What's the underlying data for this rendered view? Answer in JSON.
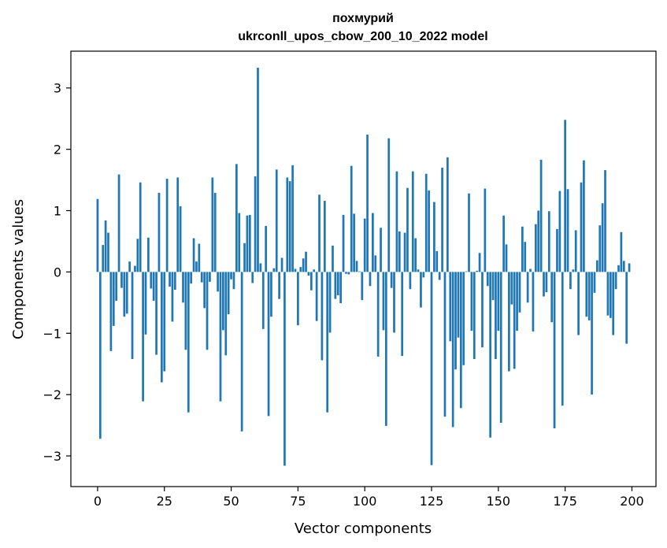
{
  "chart_data": {
    "type": "bar",
    "title_line1": "похмурий",
    "title_line2": "ukrconll_upos_cbow_200_10_2022 model",
    "xlabel": "Vector components",
    "ylabel": "Components values",
    "xlim": [
      -10,
      209
    ],
    "ylim": [
      -3.5,
      3.6
    ],
    "xticks": [
      0,
      25,
      50,
      75,
      100,
      125,
      150,
      175,
      200
    ],
    "xtick_labels": [
      "0",
      "25",
      "50",
      "75",
      "100",
      "125",
      "150",
      "175",
      "200"
    ],
    "yticks": [
      -3,
      -2,
      -1,
      0,
      1,
      2,
      3
    ],
    "ytick_labels": [
      "−3",
      "−2",
      "−1",
      "0",
      "1",
      "2",
      "3"
    ],
    "bar_color": "#1f77b4",
    "x": [
      0,
      1,
      2,
      3,
      4,
      5,
      6,
      7,
      8,
      9,
      10,
      11,
      12,
      13,
      14,
      15,
      16,
      17,
      18,
      19,
      20,
      21,
      22,
      23,
      24,
      25,
      26,
      27,
      28,
      29,
      30,
      31,
      32,
      33,
      34,
      35,
      36,
      37,
      38,
      39,
      40,
      41,
      42,
      43,
      44,
      45,
      46,
      47,
      48,
      49,
      50,
      51,
      52,
      53,
      54,
      55,
      56,
      57,
      58,
      59,
      60,
      61,
      62,
      63,
      64,
      65,
      66,
      67,
      68,
      69,
      70,
      71,
      72,
      73,
      74,
      75,
      76,
      77,
      78,
      79,
      80,
      81,
      82,
      83,
      84,
      85,
      86,
      87,
      88,
      89,
      90,
      91,
      92,
      93,
      94,
      95,
      96,
      97,
      98,
      99,
      100,
      101,
      102,
      103,
      104,
      105,
      106,
      107,
      108,
      109,
      110,
      111,
      112,
      113,
      114,
      115,
      116,
      117,
      118,
      119,
      120,
      121,
      122,
      123,
      124,
      125,
      126,
      127,
      128,
      129,
      130,
      131,
      132,
      133,
      134,
      135,
      136,
      137,
      138,
      139,
      140,
      141,
      142,
      143,
      144,
      145,
      146,
      147,
      148,
      149,
      150,
      151,
      152,
      153,
      154,
      155,
      156,
      157,
      158,
      159,
      160,
      161,
      162,
      163,
      164,
      165,
      166,
      167,
      168,
      169,
      170,
      171,
      172,
      173,
      174,
      175,
      176,
      177,
      178,
      179,
      180,
      181,
      182,
      183,
      184,
      185,
      186,
      187,
      188,
      189,
      190,
      191,
      192,
      193,
      194,
      195,
      196,
      197,
      198,
      199
    ],
    "values": [
      1.19,
      -2.72,
      0.44,
      0.84,
      0.64,
      -1.29,
      -0.88,
      -0.47,
      1.59,
      -0.26,
      -0.73,
      -0.68,
      0.17,
      -1.42,
      0.1,
      0.54,
      1.46,
      -2.11,
      -1.02,
      0.56,
      -0.27,
      -0.47,
      -1.35,
      1.29,
      -1.8,
      -1.62,
      1.52,
      -0.24,
      -0.81,
      -0.29,
      1.54,
      1.07,
      -0.5,
      -1.27,
      -2.29,
      -0.19,
      0.55,
      0.17,
      0.46,
      -0.17,
      -0.59,
      -1.27,
      -0.16,
      1.54,
      1.29,
      -0.32,
      -2.11,
      -0.95,
      -1.36,
      -0.69,
      -0.12,
      -0.28,
      1.76,
      0.96,
      -2.6,
      0.47,
      0.92,
      0.93,
      -0.18,
      1.56,
      3.33,
      0.14,
      -0.93,
      0.75,
      -2.35,
      -0.73,
      0.06,
      1.67,
      -0.44,
      0.23,
      -3.16,
      1.54,
      1.48,
      1.74,
      0.05,
      -0.87,
      0.08,
      0.22,
      0.33,
      -0.06,
      -0.3,
      0.04,
      -0.8,
      1.26,
      -1.44,
      1.16,
      -2.29,
      -0.99,
      0.43,
      -0.44,
      -0.38,
      -0.51,
      0.93,
      -0.03,
      -0.04,
      1.73,
      0.95,
      0.18,
      0.01,
      -0.46,
      0.87,
      2.24,
      -0.23,
      0.96,
      0.27,
      -1.38,
      0.72,
      -0.95,
      -2.51,
      2.18,
      -0.26,
      -0.99,
      1.64,
      0.66,
      -1.37,
      0.64,
      1.37,
      -0.28,
      1.64,
      0.55,
      0.04,
      -0.58,
      -0.09,
      1.6,
      1.33,
      -3.15,
      1.14,
      0.34,
      -0.13,
      1.7,
      -2.36,
      1.87,
      -1.13,
      -2.53,
      -1.59,
      -1.07,
      -2.22,
      -1.52,
      0.01,
      1.28,
      -0.96,
      -1.42,
      0.02,
      0.31,
      -1.23,
      1.36,
      -0.23,
      -2.7,
      -0.46,
      -1.42,
      -0.96,
      -2.46,
      0.92,
      0.45,
      -1.62,
      -0.53,
      -1.58,
      -0.96,
      -0.66,
      0.74,
      0.49,
      -0.5,
      0.05,
      -0.97,
      0.78,
      1.0,
      1.83,
      -0.4,
      -0.33,
      0.99,
      -0.82,
      -2.55,
      0.7,
      1.32,
      -2.18,
      2.48,
      1.35,
      -0.28,
      0.04,
      0.68,
      -1.03,
      1.46,
      1.82,
      -0.73,
      -0.79,
      -2.0,
      -0.34,
      0.19,
      0.76,
      1.12,
      1.66,
      -0.71,
      -0.75,
      -1.03,
      -0.28,
      0.11,
      0.65,
      0.18,
      -1.17,
      0.14
    ]
  }
}
